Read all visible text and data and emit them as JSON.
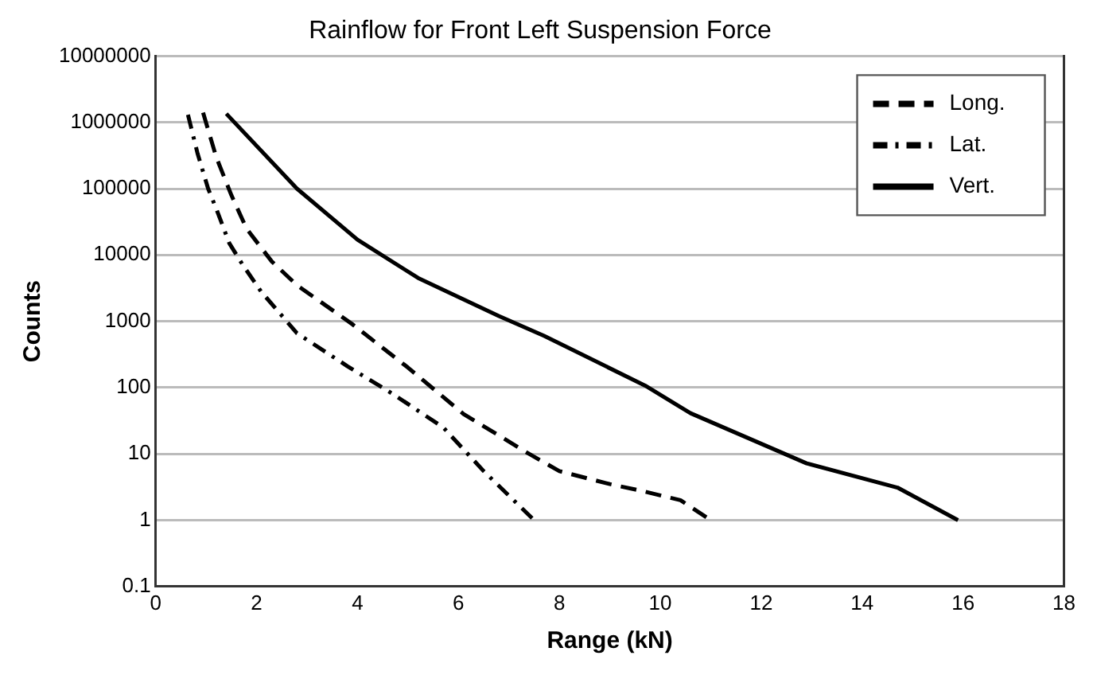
{
  "chart_data": {
    "type": "line",
    "title": "Rainflow for Front Left Suspension Force",
    "xlabel": "Range (kN)",
    "ylabel": "Counts",
    "log": "y",
    "grid": "y",
    "legend": "top right",
    "marker": "none",
    "xlim": [
      0,
      18
    ],
    "xticks": [
      0,
      2,
      4,
      6,
      8,
      10,
      12,
      14,
      16,
      18
    ],
    "ylim": [
      0.1,
      10000000
    ],
    "yticks": [
      0.1,
      1,
      10,
      100,
      1000,
      10000,
      100000,
      1000000,
      10000000
    ],
    "series": [
      {
        "name": "Long.",
        "color": "#000000",
        "line_style": "dashed",
        "x": [
          0.94,
          1.2,
          1.5,
          1.8,
          2.3,
          2.8,
          3.9,
          5,
          6.1,
          7.4,
          8,
          9,
          9.6,
          10.4,
          11
        ],
        "values": [
          1400000,
          300000,
          80000,
          25000,
          8000,
          3500,
          900,
          200,
          40,
          10,
          5.5,
          3.5,
          2.8,
          2,
          1
        ]
      },
      {
        "name": "Lat.",
        "color": "#000000",
        "line_style": "dashdot",
        "x": [
          0.64,
          0.83,
          1.04,
          1.2,
          1.46,
          1.73,
          2.09,
          2.8,
          3.8,
          4.7,
          5.7,
          6.5,
          7.5
        ],
        "values": [
          1300000,
          340000,
          100000,
          50000,
          15000,
          7000,
          2800,
          660,
          210,
          80,
          25,
          5.5,
          1
        ]
      },
      {
        "name": "Vert.",
        "color": "#000000",
        "line_style": "solid",
        "x": [
          1.4,
          2.8,
          4,
          5.2,
          6.8,
          7.7,
          9.7,
          10.6,
          12.9,
          14.7,
          15.9
        ],
        "values": [
          1350000,
          100000,
          17000,
          4500,
          1200,
          600,
          107,
          41,
          7.2,
          3.1,
          1
        ]
      }
    ]
  }
}
